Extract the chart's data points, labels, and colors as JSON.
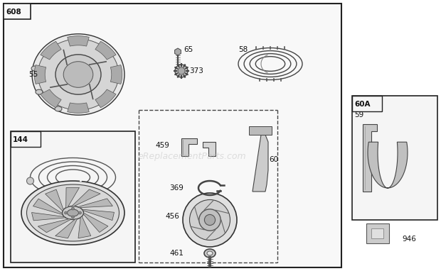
{
  "bg_color": "#ffffff",
  "watermark": "eReplacementParts.com",
  "watermark_color": "#bbbbbb",
  "watermark_alpha": 0.45
}
